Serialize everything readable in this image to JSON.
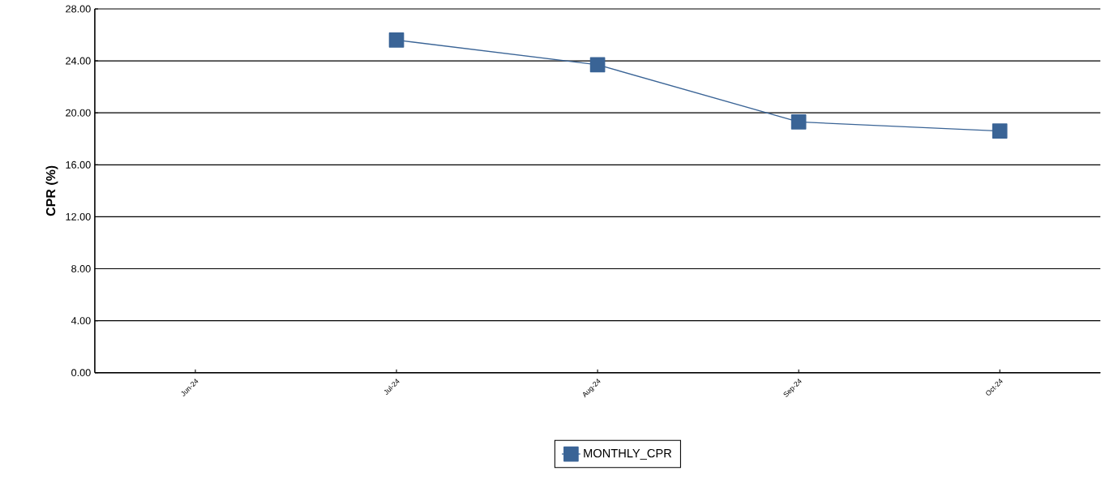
{
  "chart_data": {
    "type": "line",
    "ylabel": "CPR (%)",
    "categories": [
      "Jun-24",
      "Jul-24",
      "Aug-24",
      "Sep-24",
      "Oct-24"
    ],
    "series": [
      {
        "name": "MONTHLY_CPR",
        "color": "#3a6496",
        "values": [
          null,
          25.6,
          23.7,
          19.3,
          18.6
        ]
      }
    ],
    "ylim": [
      0,
      28
    ],
    "yticks": [
      {
        "value": 0,
        "label": "0.00"
      },
      {
        "value": 4,
        "label": "4.00"
      },
      {
        "value": 8,
        "label": "8.00"
      },
      {
        "value": 12,
        "label": "12.00"
      },
      {
        "value": 16,
        "label": "16.00"
      },
      {
        "value": 20,
        "label": "20.00"
      },
      {
        "value": 24,
        "label": "24.00"
      },
      {
        "value": 28,
        "label": "28.00"
      }
    ],
    "grid": "y",
    "legend": "bottom",
    "marker": "square",
    "line_style": "solid"
  }
}
